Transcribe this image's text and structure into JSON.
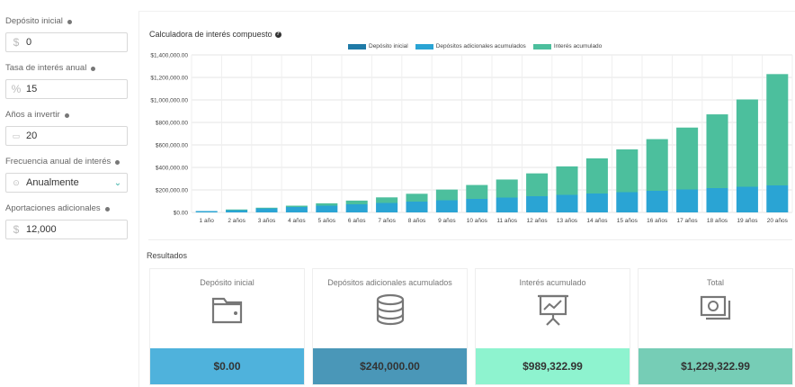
{
  "form": {
    "fields": [
      {
        "label": "Depósito inicial",
        "prefix": "$",
        "value": "0"
      },
      {
        "label": "Tasa de interés anual",
        "prefix": "%",
        "value": "15"
      },
      {
        "label": "Años a invertir",
        "prefix": "▭",
        "value": "20"
      },
      {
        "label": "Frecuencia anual de interés",
        "prefix": "⊙",
        "value": "Anualmente"
      },
      {
        "label": "Aportaciones adicionales",
        "prefix": "$",
        "value": "12,000"
      }
    ]
  },
  "chart_title": "Calculadora de interés compuesto",
  "colors": {
    "initial": "#1f7aa7",
    "additional": "#2aa4d4",
    "interest": "#4cbf9d",
    "card_initial": "#4fb2dc",
    "card_additional": "#4a97b8",
    "card_interest": "#8ef3cf",
    "card_total": "#76cdb6"
  },
  "chart_data": {
    "type": "bar",
    "stacked": true,
    "categories": [
      "1 año",
      "2 años",
      "3 años",
      "4 años",
      "5 años",
      "6 años",
      "7 años",
      "8 años",
      "9 años",
      "10 años",
      "11 años",
      "12 años",
      "13 años",
      "14 años",
      "15 años",
      "16 años",
      "17 años",
      "18 años",
      "19 años",
      "20 años"
    ],
    "series": [
      {
        "name": "Depósito inicial",
        "values": [
          0,
          0,
          0,
          0,
          0,
          0,
          0,
          0,
          0,
          0,
          0,
          0,
          0,
          0,
          0,
          0,
          0,
          0,
          0,
          0
        ]
      },
      {
        "name": "Depósitos adicionales acumulados",
        "values": [
          12000,
          24000,
          36000,
          48000,
          60000,
          72000,
          84000,
          96000,
          108000,
          120000,
          132000,
          144000,
          156000,
          168000,
          180000,
          192000,
          204000,
          216000,
          228000,
          240000
        ]
      },
      {
        "name": "Interés acumulado",
        "values": [
          0,
          1800,
          5670,
          11720,
          20910,
          33050,
          49560,
          69560,
          95000,
          123650,
          160280,
          202850,
          253000,
          312200,
          380000,
          459300,
          550100,
          655500,
          776100,
          989323
        ]
      }
    ],
    "yticks": [
      "$0.00",
      "$200,000.00",
      "$400,000.00",
      "$600,000.00",
      "$800,000.00",
      "$1,000,000.00",
      "$1,200,000.00",
      "$1,400,000.00"
    ],
    "ylim": [
      0,
      1400000
    ]
  },
  "results": {
    "label": "Resultados",
    "cards": [
      {
        "title": "Depósito inicial",
        "value": "$0.00",
        "icon": "wallet-icon"
      },
      {
        "title": "Depósitos adicionales acumulados",
        "value": "$240,000.00",
        "icon": "coins-icon"
      },
      {
        "title": "Interés acumulado",
        "value": "$989,322.99",
        "icon": "presentation-chart-icon"
      },
      {
        "title": "Total",
        "value": "$1,229,322.99",
        "icon": "money-icon"
      }
    ]
  }
}
